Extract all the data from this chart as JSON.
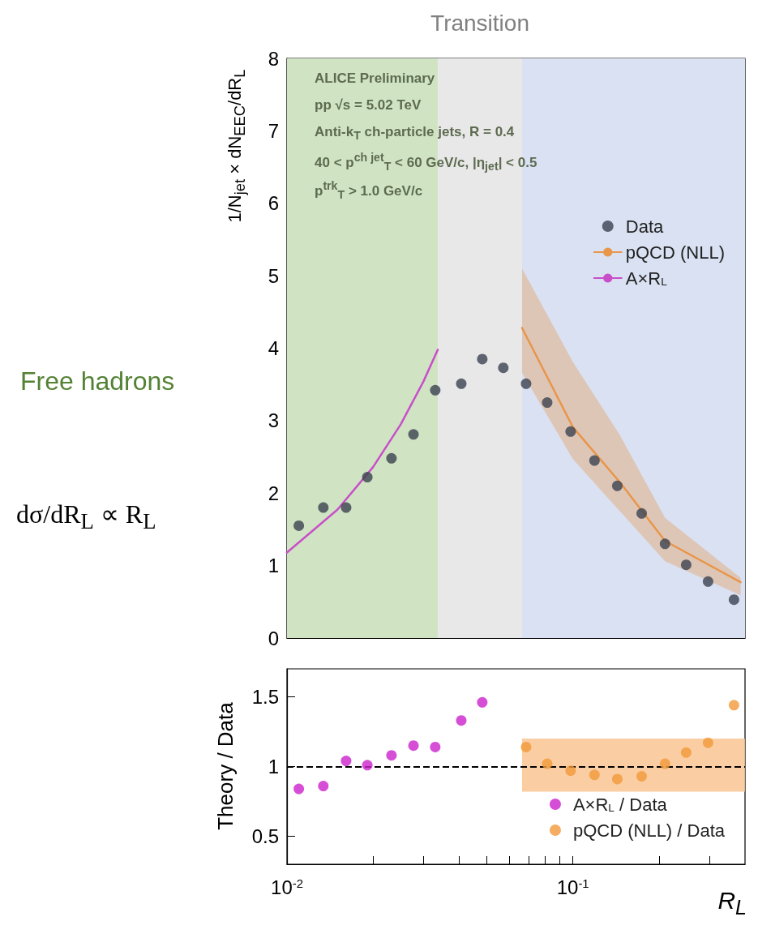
{
  "chart_data": [
    {
      "type": "scatter",
      "ylabel": "1/N$_{jet}$ × dN$_{EEC}$/dR$_{L}$",
      "log": "x",
      "xlim": [
        0.01,
        0.4
      ],
      "ylim": [
        0,
        8
      ],
      "yticks": [
        0,
        1,
        2,
        3,
        4,
        5,
        6,
        7,
        8
      ],
      "xticks": [
        {
          "value": 0.01,
          "label": null
        },
        {
          "value": 0.02,
          "label": null
        },
        {
          "value": 0.03,
          "label": null
        },
        {
          "value": 0.04,
          "label": null
        },
        {
          "value": 0.05,
          "label": null
        },
        {
          "value": 0.06,
          "label": null
        },
        {
          "value": 0.07,
          "label": null
        },
        {
          "value": 0.08,
          "label": null
        },
        {
          "value": 0.09,
          "label": null
        },
        {
          "value": 0.1,
          "label": null
        },
        {
          "value": 0.2,
          "label": null
        },
        {
          "value": 0.3,
          "label": null
        }
      ],
      "tick_labels": "y",
      "grid": false,
      "legend": "top right",
      "x": [
        0.011,
        0.0134,
        0.0161,
        0.0191,
        0.0232,
        0.0277,
        0.033,
        0.0407,
        0.0482,
        0.0571,
        0.0686,
        0.0813,
        0.0982,
        0.119,
        0.143,
        0.174,
        0.21,
        0.249,
        0.297,
        0.366
      ],
      "series": [
        {
          "name": "Data",
          "color": "#3b4250",
          "marker": "circle",
          "values": [
            1.55,
            1.8,
            1.8,
            2.22,
            2.48,
            2.81,
            3.42,
            3.51,
            3.85,
            3.73,
            3.51,
            3.25,
            2.85,
            2.45,
            2.1,
            1.72,
            1.3,
            1.01,
            0.78,
            0.53
          ]
        },
        {
          "name": "pQCD (NLL)",
          "type": "line",
          "color": "#e8964a",
          "marker": "none",
          "x": [
            0.0664,
            0.1,
            0.146,
            0.21,
            0.386
          ],
          "values": [
            4.28,
            2.91,
            2.15,
            1.34,
            0.77
          ],
          "lower": [
            3.66,
            2.47,
            1.75,
            1.06,
            0.59
          ],
          "upper": [
            5.1,
            3.81,
            2.8,
            1.66,
            0.83
          ]
        },
        {
          "name": "A×R$_{L}$",
          "type": "line",
          "color": "#c84fc8",
          "marker": "none",
          "x": [
            0.01,
            0.015,
            0.02,
            0.025,
            0.03,
            0.0337
          ],
          "values": [
            1.18,
            1.77,
            2.36,
            2.95,
            3.54,
            3.98
          ]
        }
      ],
      "bands": [
        {
          "axis": "x",
          "from": 0.01,
          "to": 0.0337,
          "label": null,
          "color": "#d0e4c4"
        },
        {
          "axis": "x",
          "from": 0.0337,
          "to": 0.0664,
          "label": "Transition",
          "color": "#e8e8e8"
        },
        {
          "axis": "x",
          "from": 0.0664,
          "to": 0.4,
          "label": null,
          "color": "#d9e1f2"
        }
      ],
      "annotations": [
        "ALICE Preliminary",
        "pp √s = 5.02 TeV",
        "Anti-k$_{T}$ ch-particle jets, R = 0.4",
        "40 < p$^{ch jet}$$_{T}$ < 60 GeV/c, |η$_{jet}$| < 0.5",
        "p$^{trk}$$_{T}$ > 1.0 GeV/c",
        "Free hadrons",
        "dσ/dR$_{L}$ ∝ R$_{L}$"
      ]
    },
    {
      "type": "scatter",
      "ylabel": "Theory / Data",
      "xlabel": "R$_{L}$",
      "log": "x",
      "xlim": [
        0.01,
        0.4
      ],
      "ylim": [
        0.3,
        1.7
      ],
      "yticks": [
        0.5,
        1,
        1.5
      ],
      "xticks": [
        {
          "value": 0.01,
          "label": "10$^{-2}$"
        },
        {
          "value": 0.02,
          "label": null
        },
        {
          "value": 0.03,
          "label": null
        },
        {
          "value": 0.04,
          "label": null
        },
        {
          "value": 0.05,
          "label": null
        },
        {
          "value": 0.06,
          "label": null
        },
        {
          "value": 0.07,
          "label": null
        },
        {
          "value": 0.08,
          "label": null
        },
        {
          "value": 0.09,
          "label": null
        },
        {
          "value": 0.1,
          "label": "10$^{-1}$"
        },
        {
          "value": 0.2,
          "label": null
        },
        {
          "value": 0.3,
          "label": null
        }
      ],
      "grid": false,
      "legend": "bottom right",
      "series": [
        {
          "type": "area",
          "color": "#f9c592",
          "x": [
            0.0664,
            0.4
          ],
          "values": [
            null,
            null
          ],
          "lower": [
            0.82,
            0.82
          ],
          "upper": [
            1.2,
            1.2
          ]
        },
        {
          "name": "A×R$_{L}$ / Data",
          "color": "#cc22cc",
          "marker": "circle",
          "x": [
            0.011,
            0.0134,
            0.0161,
            0.0191,
            0.0232,
            0.0277,
            0.033,
            0.0407,
            0.0482
          ],
          "values": [
            0.84,
            0.86,
            1.04,
            1.01,
            1.08,
            1.15,
            1.14,
            1.33,
            1.46
          ]
        },
        {
          "name": "pQCD (NLL) / Data",
          "color": "#f39a3a",
          "marker": "circle",
          "x": [
            0.0686,
            0.0813,
            0.0982,
            0.119,
            0.143,
            0.174,
            0.21,
            0.249,
            0.297,
            0.366
          ],
          "values": [
            1.14,
            1.02,
            0.97,
            0.94,
            0.91,
            0.93,
            1.02,
            1.1,
            1.17,
            1.44
          ]
        }
      ],
      "ref_lines": [
        {
          "axis": "y",
          "value": 1,
          "label": null,
          "color": "#000000",
          "line_style": "dashed"
        }
      ]
    }
  ]
}
